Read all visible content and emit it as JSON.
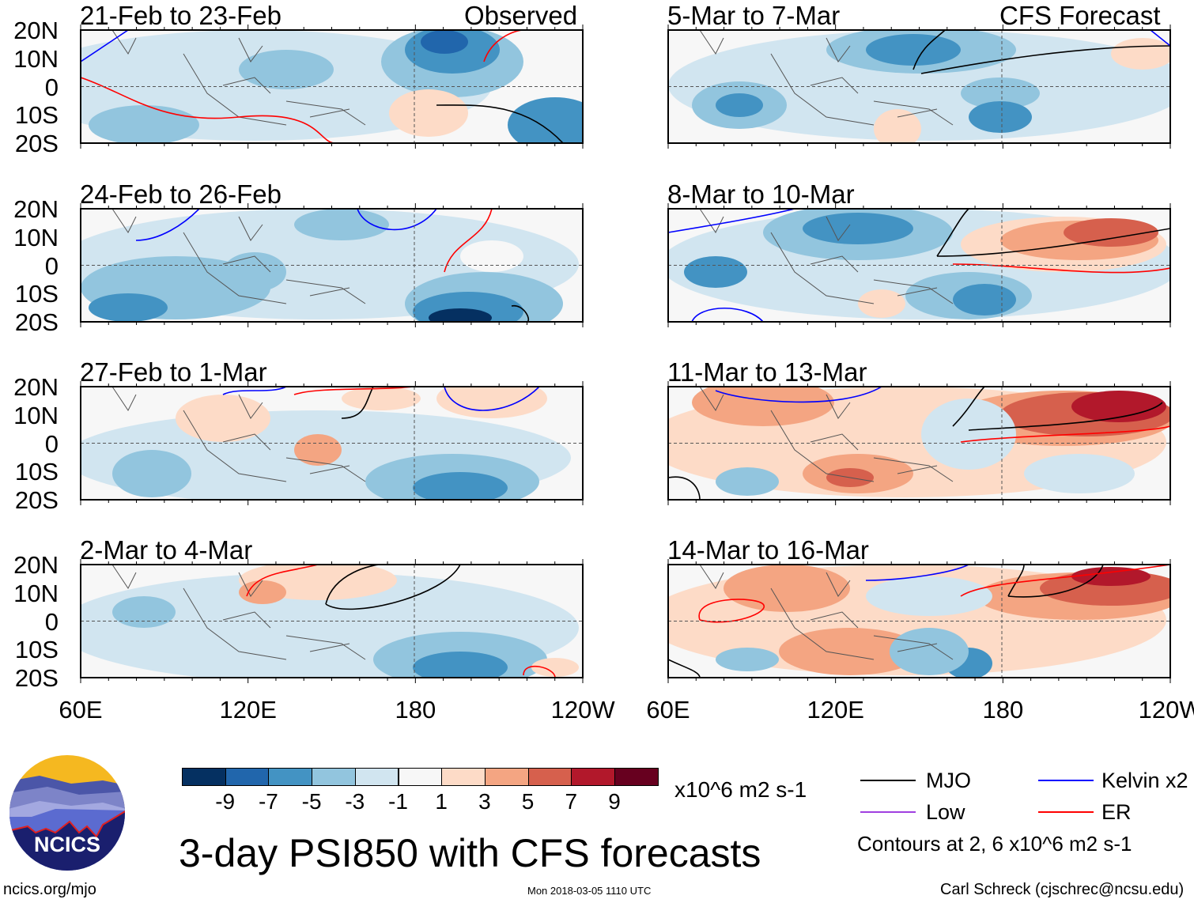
{
  "header": {
    "observed_label": "Observed",
    "forecast_label": "CFS Forecast"
  },
  "panels_left": [
    {
      "title": "21-Feb to 23-Feb"
    },
    {
      "title": "24-Feb to 26-Feb"
    },
    {
      "title": "27-Feb to 1-Mar"
    },
    {
      "title": "2-Mar to 4-Mar"
    }
  ],
  "panels_right": [
    {
      "title": "5-Mar to 7-Mar"
    },
    {
      "title": "8-Mar to 10-Mar"
    },
    {
      "title": "11-Mar to 13-Mar"
    },
    {
      "title": "14-Mar to 16-Mar"
    }
  ],
  "lat_labels": [
    "20N",
    "10N",
    "0",
    "10S",
    "20S"
  ],
  "lon_labels": [
    "60E",
    "120E",
    "180",
    "120W"
  ],
  "colorbar": {
    "colors": [
      "#053061",
      "#2166ac",
      "#4393c3",
      "#92c5de",
      "#d1e5f0",
      "#f7f7f7",
      "#fddbc7",
      "#f4a582",
      "#d6604d",
      "#b2182b",
      "#67001f"
    ],
    "tick_labels": [
      "-9",
      "-7",
      "-5",
      "-3",
      "-1",
      "1",
      "3",
      "5",
      "7",
      "9"
    ],
    "units": "x10^6 m2 s-1"
  },
  "legend": {
    "items": [
      {
        "label": "MJO",
        "color": "#000000"
      },
      {
        "label": "Kelvin x2",
        "color": "#0000ff"
      },
      {
        "label": "Low",
        "color": "#a040e0"
      },
      {
        "label": "ER",
        "color": "#ff0000"
      }
    ],
    "contours_note": "Contours at 2, 6 x10^6 m2 s-1"
  },
  "main_title": "3-day PSI850 with CFS forecasts",
  "logo": {
    "text": "NCICS"
  },
  "footer": {
    "url": "ncics.org/mjo",
    "timestamp": "Mon 2018-03-05 1110 UTC",
    "credit": "Carl Schreck (cjschrec@ncsu.edu)"
  }
}
